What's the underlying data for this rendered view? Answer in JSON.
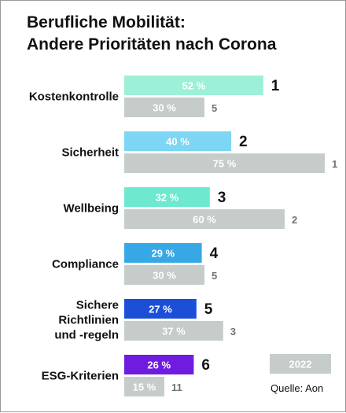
{
  "chart_data": {
    "type": "bar",
    "orientation": "horizontal",
    "title": [
      "Berufliche Mobilität:",
      "Andere Prioritäten nach Corona"
    ],
    "categories": [
      [
        "Kostenkontrolle"
      ],
      [
        "Sicherheit"
      ],
      [
        "Wellbeing"
      ],
      [
        "Compliance"
      ],
      [
        "Sichere",
        "Richtlinien",
        "und -regeln"
      ],
      [
        "ESG-Kriterien"
      ]
    ],
    "series": [
      {
        "values": [
          52,
          40,
          32,
          29,
          27,
          26
        ],
        "value_labels": [
          "52 %",
          "40 %",
          "32 %",
          "29 %",
          "27 %",
          "26 %"
        ],
        "ranks": [
          "1",
          "2",
          "3",
          "4",
          "5",
          "6"
        ],
        "colors": [
          "#9df0d8",
          "#7dd6f4",
          "#6ee8cf",
          "#37a8e6",
          "#1c4fd8",
          "#6f1ce0"
        ]
      },
      {
        "name": "2022",
        "values": [
          30,
          75,
          60,
          30,
          37,
          15
        ],
        "value_labels": [
          "30 %",
          "75 %",
          "60 %",
          "30 %",
          "37 %",
          "15 %"
        ],
        "ranks": [
          "5",
          "1",
          "2",
          "5",
          "3",
          "11"
        ],
        "color": "#c6ccca"
      }
    ],
    "xlim": [
      0,
      100
    ],
    "grid": false,
    "legend": "bottom-right"
  },
  "source": "Quelle: Aon"
}
